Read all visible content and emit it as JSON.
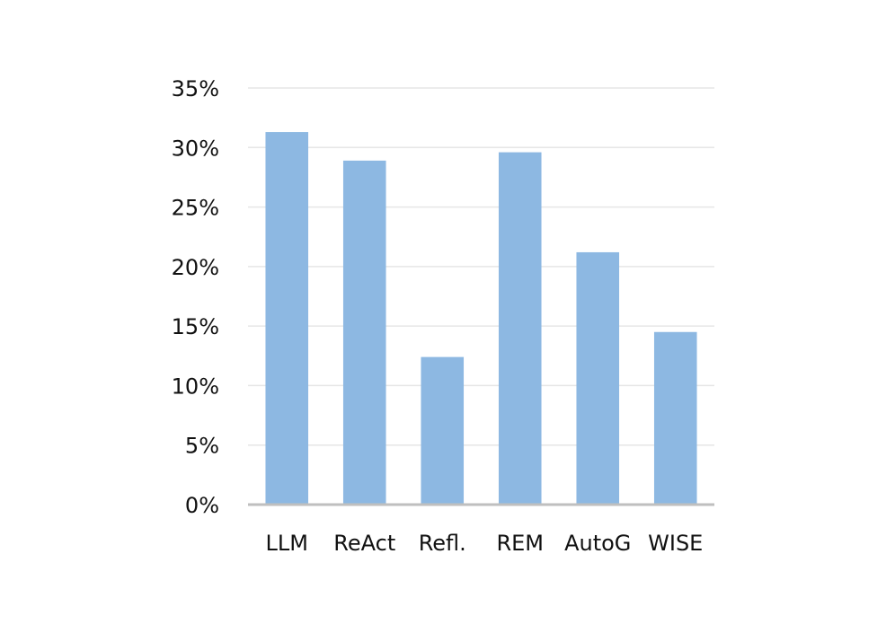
{
  "chart_data": {
    "type": "bar",
    "title": "",
    "xlabel": "",
    "ylabel": "",
    "categories": [
      "LLM",
      "ReAct",
      "Refl.",
      "REM",
      "AutoG",
      "WISE"
    ],
    "values": [
      31.3,
      28.9,
      12.4,
      29.6,
      21.2,
      14.5
    ],
    "ylim": [
      0,
      35
    ],
    "yticks": [
      0,
      5,
      10,
      15,
      20,
      25,
      30,
      35
    ],
    "ytick_labels": [
      "0%",
      "5%",
      "10%",
      "15%",
      "20%",
      "25%",
      "30%",
      "35%"
    ],
    "grid": true,
    "legend": "none",
    "bar_color": "#8db8e2",
    "grid_color": "#e6e6e6",
    "axis_color": "#bfbfbf"
  }
}
